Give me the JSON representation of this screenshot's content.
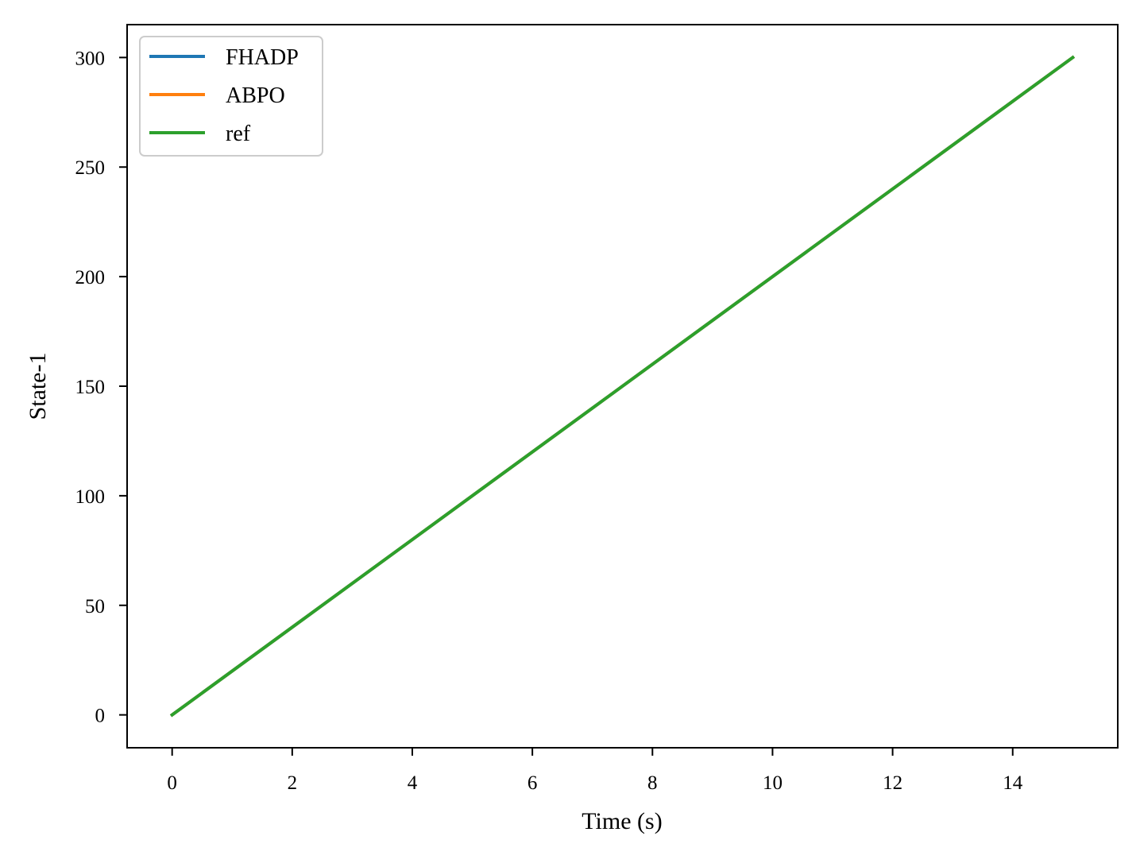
{
  "chart_data": {
    "type": "line",
    "title": "",
    "xlabel": "Time (s)",
    "ylabel": "State-1",
    "xlim": [
      -0.75,
      15.75
    ],
    "ylim": [
      -15,
      315
    ],
    "xticks": [
      0,
      2,
      4,
      6,
      8,
      10,
      12,
      14
    ],
    "yticks": [
      0,
      50,
      100,
      150,
      200,
      250,
      300
    ],
    "grid": false,
    "legend_position": "top-left",
    "series": [
      {
        "name": "FHADP",
        "color": "#1f77b4",
        "x": [
          0,
          15
        ],
        "y": [
          0,
          300
        ]
      },
      {
        "name": "ABPO",
        "color": "#ff7f0e",
        "x": [
          0,
          15
        ],
        "y": [
          0,
          300
        ]
      },
      {
        "name": "ref",
        "color": "#2ca02c",
        "x": [
          0,
          15
        ],
        "y": [
          0,
          300
        ]
      }
    ]
  }
}
